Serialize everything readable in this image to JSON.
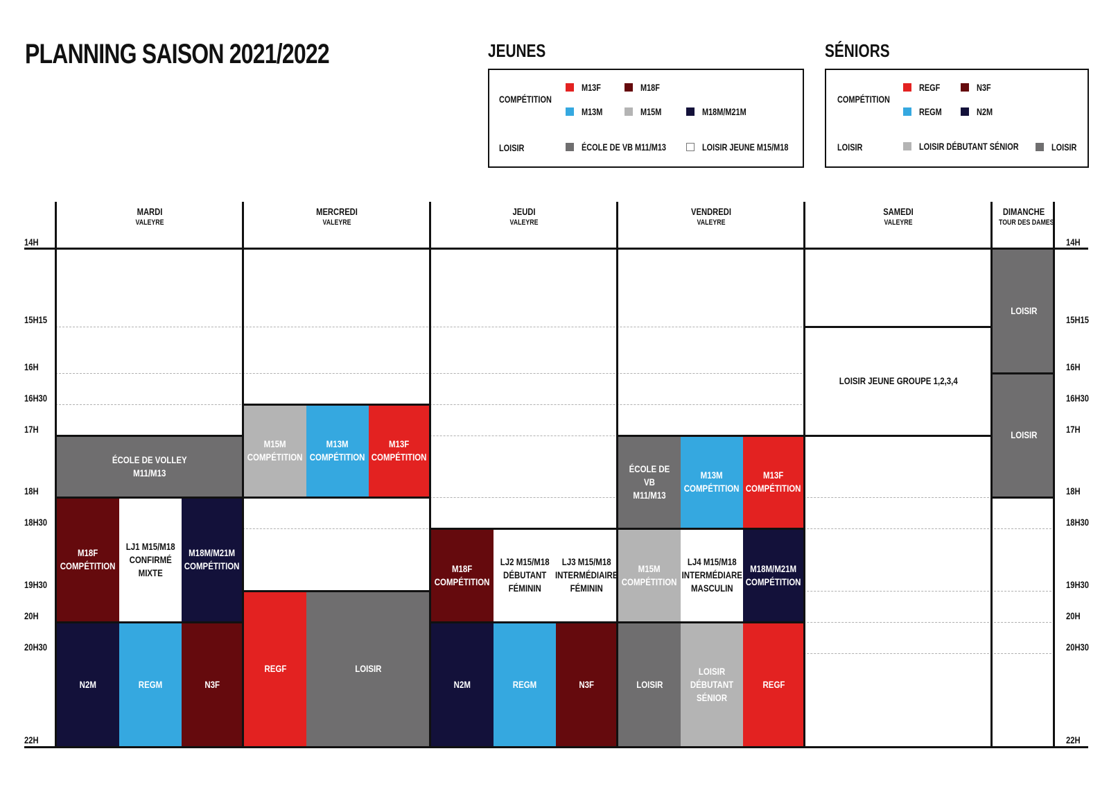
{
  "title": "PLANNING SAISON 2021/2022",
  "colors": {
    "red": "#e32221",
    "maroon": "#650a0d",
    "blue": "#35a8e0",
    "light_gray": "#b4b4b4",
    "navy": "#13113a",
    "dark_gray": "#6f6e6f",
    "white": "#ffffff"
  },
  "legend_jeunes": {
    "heading": "JEUNES",
    "competition_label": "COMPÉTITION",
    "loisir_label": "LOISIR",
    "items": [
      "M13F",
      "M18F",
      "M13M",
      "M15M",
      "M18M/M21M",
      "ÉCOLE DE VB M11/M13",
      "LOISIR JEUNE M15/M18"
    ]
  },
  "legend_seniors": {
    "heading": "SÉNIORS",
    "competition_label": "COMPÉTITION",
    "loisir_label": "LOISIR",
    "items": [
      "REGF",
      "N3F",
      "REGM",
      "N2M",
      "LOISIR DÉBUTANT SÉNIOR",
      "LOISIR"
    ]
  },
  "times": [
    "14H",
    "15H15",
    "16H",
    "16H30",
    "17H",
    "18H",
    "18H30",
    "19H30",
    "20H",
    "20H30",
    "22H"
  ],
  "days": [
    {
      "name": "MARDI",
      "location": "VALEYRE"
    },
    {
      "name": "MERCREDI",
      "location": "VALEYRE"
    },
    {
      "name": "JEUDI",
      "location": "VALEYRE"
    },
    {
      "name": "VENDREDI",
      "location": "VALEYRE"
    },
    {
      "name": "SAMEDI",
      "location": "VALEYRE"
    },
    {
      "name": "DIMANCHE",
      "location": "TOUR DES DAMES"
    }
  ],
  "blocks": {
    "mar_ecole": "ÉCOLE DE VOLLEY\nM11/M13",
    "mar_m18f": "M18F\nCOMPÉTITION",
    "mar_lj1": "LJ1 M15/M18\nCONFIRMÉ\nMIXTE",
    "mar_m18m": "M18M/M21M\nCOMPÉTITION",
    "mar_n2m": "N2M",
    "mar_regm": "REGM",
    "mar_n3f": "N3F",
    "mer_m15m": "M15M\nCOMPÉTITION",
    "mer_m13m": "M13M\nCOMPÉTITION",
    "mer_m13f": "M13F\nCOMPÉTITION",
    "mer_regf": "REGF",
    "mer_loisir": "LOISIR",
    "jeu_m18f": "M18F\nCOMPÉTITION",
    "jeu_lj2": "LJ2 M15/M18\nDÉBUTANT\nFÉMININ",
    "jeu_lj3": "LJ3 M15/M18\nINTERMÉDIAIRE\nFÉMININ",
    "jeu_n2m": "N2M",
    "jeu_regm": "REGM",
    "jeu_n3f": "N3F",
    "ven_ecole": "ÉCOLE DE VB\nM11/M13",
    "ven_m13m": "M13M\nCOMPÉTITION",
    "ven_m13f": "M13F\nCOMPÉTITION",
    "ven_m15m": "M15M\nCOMPÉTITION",
    "ven_lj4": "LJ4 M15/M18\nINTERMÉDIARE\nMASCULIN",
    "ven_m18m": "M18M/M21M\nCOMPÉTITION",
    "ven_loisir": "LOISIR",
    "ven_loisir_deb": "LOISIR\nDÉBUTANT\nSÉNIOR",
    "ven_regf": "REGF",
    "sam_loisir_jeune": "LOISIR JEUNE GROUPE 1,2,3,4",
    "dim_loisir1": "LOISIR",
    "dim_loisir2": "LOISIR"
  }
}
